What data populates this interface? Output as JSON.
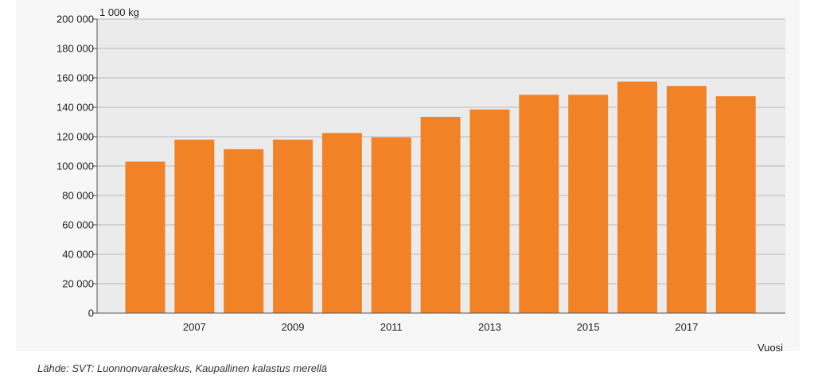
{
  "chart_data": {
    "type": "bar",
    "unit_label": "1 000 kg",
    "xlabel": "Vuosi",
    "ylabel": "",
    "ylim": [
      0,
      200000
    ],
    "y_ticks": [
      0,
      20000,
      40000,
      60000,
      80000,
      100000,
      120000,
      140000,
      160000,
      180000,
      200000
    ],
    "y_tick_labels": [
      "0",
      "20 000",
      "40 000",
      "60 000",
      "80 000",
      "100 000",
      "120 000",
      "140 000",
      "160 000",
      "180 000",
      "200 000"
    ],
    "categories": [
      "2006",
      "2007",
      "2008",
      "2009",
      "2010",
      "2011",
      "2012",
      "2013",
      "2014",
      "2015",
      "2016",
      "2017",
      "2018"
    ],
    "x_tick_labels": [
      "",
      "2007",
      "",
      "2009",
      "",
      "2011",
      "",
      "2013",
      "",
      "2015",
      "",
      "2017",
      ""
    ],
    "values": [
      103000,
      118000,
      111500,
      118000,
      122500,
      119500,
      133500,
      138500,
      148500,
      148500,
      157500,
      154500,
      147500
    ],
    "bar_color": "#f28226",
    "plot_background": "#ebebeb",
    "grid": true
  },
  "source_text": "Lähde: SVT: Luonnonvarakeskus, Kaupallinen kalastus merellä"
}
